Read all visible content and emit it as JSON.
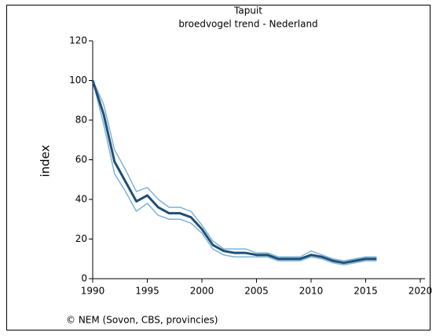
{
  "chart_data": {
    "type": "line",
    "title": "Tapuit",
    "subtitle": "broedvogel trend - Nederland",
    "y_label": "index",
    "source": "© NEM (Sovon, CBS, provincies)",
    "x": [
      1990,
      1991,
      1992,
      1993,
      1994,
      1995,
      1996,
      1997,
      1998,
      1999,
      2000,
      2001,
      2002,
      2003,
      2004,
      2005,
      2006,
      2007,
      2008,
      2009,
      2010,
      2011,
      2012,
      2013,
      2014,
      2015,
      2016
    ],
    "series": [
      {
        "color": "#7fb3d3",
        "values": [
          100,
          88,
          65,
          55,
          44,
          46,
          40,
          36,
          36,
          34,
          27,
          19,
          15,
          15,
          15,
          13,
          13,
          11,
          11,
          11,
          14,
          12,
          10,
          9,
          10,
          11,
          11
        ]
      },
      {
        "color": "#7fb3d3",
        "values": [
          100,
          78,
          53,
          44,
          34,
          38,
          32,
          30,
          30,
          28,
          23,
          15,
          12,
          11,
          11,
          11,
          11,
          9,
          9,
          9,
          11,
          10,
          8,
          7,
          8,
          9,
          9
        ]
      },
      {
        "color": "#1f4e79",
        "values": [
          100,
          83,
          59,
          49,
          39,
          42,
          36,
          33,
          33,
          31,
          25,
          17,
          14,
          13,
          13,
          12,
          12,
          10,
          10,
          10,
          12,
          11,
          9,
          8,
          9,
          10,
          10
        ]
      }
    ],
    "xlim": [
      1990,
      2020
    ],
    "xticks": [
      1990,
      1995,
      2000,
      2005,
      2010,
      2015,
      2020
    ],
    "ylim": [
      0,
      120
    ],
    "yticks": [
      0,
      20,
      40,
      60,
      80,
      100,
      120
    ]
  }
}
